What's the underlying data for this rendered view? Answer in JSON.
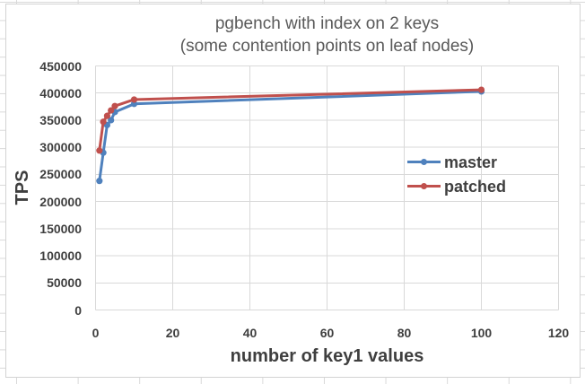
{
  "chart": {
    "title_lines": [
      "pgbench with index on 2 keys",
      "(some contention points on leaf nodes)"
    ],
    "xlabel": "number of key1 values",
    "ylabel": "TPS"
  },
  "chart_data": {
    "type": "line",
    "title": "pgbench with index on 2 keys (some contention points on leaf nodes)",
    "xlabel": "number of key1 values",
    "ylabel": "TPS",
    "xlim": [
      0,
      120
    ],
    "ylim": [
      0,
      450000
    ],
    "x_ticks": [
      0,
      20,
      40,
      60,
      80,
      100,
      120
    ],
    "y_ticks": [
      0,
      50000,
      100000,
      150000,
      200000,
      250000,
      300000,
      350000,
      400000,
      450000
    ],
    "grid": true,
    "legend_position": "inside-right",
    "marker": "circle",
    "x": [
      1,
      2,
      3,
      4,
      5,
      10,
      100
    ],
    "series": [
      {
        "name": "master",
        "color": "#4F81BD",
        "values": [
          238000,
          290000,
          341000,
          350000,
          365000,
          380000,
          403000
        ]
      },
      {
        "name": "patched",
        "color": "#C0504D",
        "values": [
          294000,
          347000,
          358000,
          368000,
          376000,
          388000,
          406000
        ]
      }
    ]
  },
  "colors": {
    "grid": "#d9d9d9",
    "tick_text": "#3f3f3f",
    "title_text": "#595959",
    "chart_border": "#d3d3d3",
    "sheet_gridline": "#d9d9d9"
  }
}
